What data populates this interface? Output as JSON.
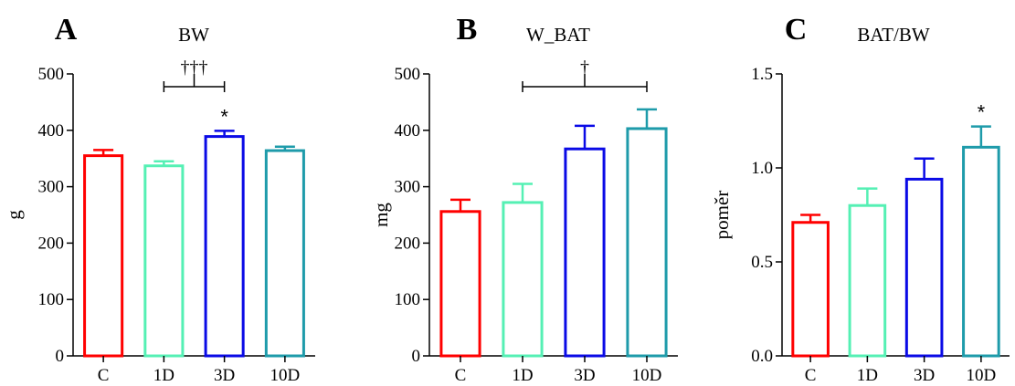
{
  "stray_glyph": "",
  "chart_data": [
    {
      "type": "bar",
      "panel": "A",
      "title": "BW",
      "xlabel": "",
      "ylabel": "g",
      "categories": [
        "C",
        "1D",
        "3D",
        "10D"
      ],
      "values": [
        355,
        337,
        389,
        364
      ],
      "errors": [
        10,
        8,
        10,
        7
      ],
      "colors": [
        "#ff0000",
        "#55f0b4",
        "#0a0ae6",
        "#1e9baa"
      ],
      "ylim": [
        0,
        500
      ],
      "yticks": [
        0,
        100,
        200,
        300,
        400,
        500
      ],
      "ytick_labels": [
        "0",
        "100",
        "200",
        "300",
        "400",
        "500"
      ],
      "bracket": {
        "from": "1D",
        "to": "3D",
        "label": "†††"
      },
      "stars": [
        {
          "category": "3D",
          "label": "*"
        }
      ],
      "grid": false,
      "legend": "none"
    },
    {
      "type": "bar",
      "panel": "B",
      "title": "W_BAT",
      "xlabel": "",
      "ylabel": "mg",
      "categories": [
        "C",
        "1D",
        "3D",
        "10D"
      ],
      "values": [
        256,
        272,
        367,
        403
      ],
      "errors": [
        21,
        33,
        41,
        34
      ],
      "colors": [
        "#ff0000",
        "#55f0b4",
        "#0a0ae6",
        "#1e9baa"
      ],
      "ylim": [
        0,
        500
      ],
      "yticks": [
        0,
        100,
        200,
        300,
        400,
        500
      ],
      "ytick_labels": [
        "0",
        "100",
        "200",
        "300",
        "400",
        "500"
      ],
      "bracket": {
        "from": "1D",
        "to": "10D",
        "label": "†"
      },
      "stars": [],
      "grid": false,
      "legend": "none"
    },
    {
      "type": "bar",
      "panel": "C",
      "title": "BAT/BW",
      "xlabel": "",
      "ylabel": "poměr",
      "categories": [
        "C",
        "1D",
        "3D",
        "10D"
      ],
      "values": [
        0.71,
        0.8,
        0.94,
        1.11
      ],
      "errors": [
        0.04,
        0.09,
        0.11,
        0.11
      ],
      "colors": [
        "#ff0000",
        "#55f0b4",
        "#0a0ae6",
        "#1e9baa"
      ],
      "ylim": [
        0,
        1.5
      ],
      "yticks": [
        0,
        0.5,
        1.0,
        1.5
      ],
      "ytick_labels": [
        "0.0",
        "0.5",
        "1.0",
        "1.5"
      ],
      "bracket": null,
      "stars": [
        {
          "category": "10D",
          "label": "*"
        }
      ],
      "grid": false,
      "legend": "none"
    }
  ]
}
